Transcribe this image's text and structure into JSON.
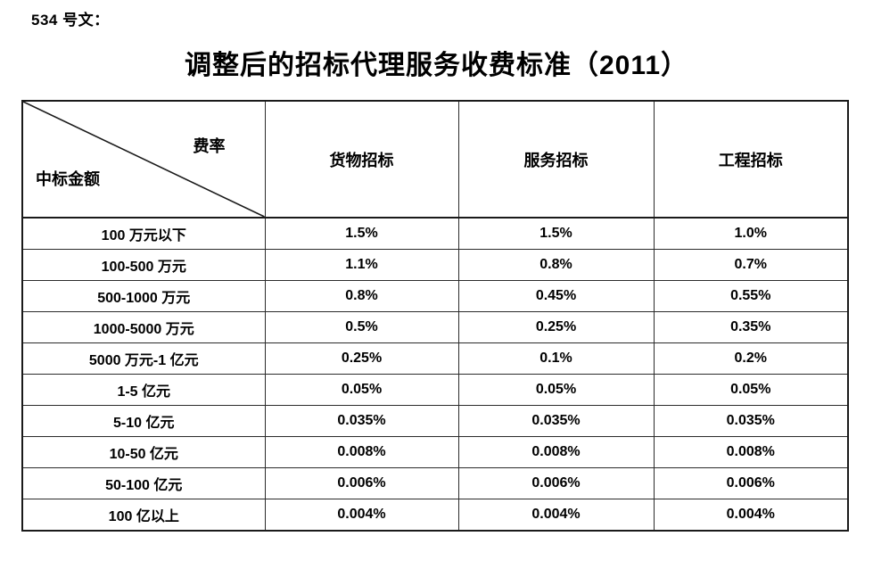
{
  "document": {
    "doc_number_label": "534 号文：",
    "title": "调整后的招标代理服务收费标准（2011）"
  },
  "table": {
    "corner": {
      "top_right": "费率",
      "bottom_left": "中标金额"
    },
    "columns": [
      "货物招标",
      "服务招标",
      "工程招标"
    ],
    "rows": [
      {
        "label": "100 万元以下",
        "values": [
          "1.5%",
          "1.5%",
          "1.0%"
        ]
      },
      {
        "label": "100-500 万元",
        "values": [
          "1.1%",
          "0.8%",
          "0.7%"
        ]
      },
      {
        "label": "500-1000 万元",
        "values": [
          "0.8%",
          "0.45%",
          "0.55%"
        ]
      },
      {
        "label": "1000-5000 万元",
        "values": [
          "0.5%",
          "0.25%",
          "0.35%"
        ]
      },
      {
        "label": "5000 万元-1 亿元",
        "values": [
          "0.25%",
          "0.1%",
          "0.2%"
        ]
      },
      {
        "label": "1-5 亿元",
        "values": [
          "0.05%",
          "0.05%",
          "0.05%"
        ]
      },
      {
        "label": "5-10 亿元",
        "values": [
          "0.035%",
          "0.035%",
          "0.035%"
        ]
      },
      {
        "label": "10-50 亿元",
        "values": [
          "0.008%",
          "0.008%",
          "0.008%"
        ]
      },
      {
        "label": "50-100 亿元",
        "values": [
          "0.006%",
          "0.006%",
          "0.006%"
        ]
      },
      {
        "label": "100 亿以上",
        "values": [
          "0.004%",
          "0.004%",
          "0.004%"
        ]
      }
    ]
  },
  "colors": {
    "text": "#000000",
    "border": "#1a1a1a",
    "background": "#ffffff"
  }
}
